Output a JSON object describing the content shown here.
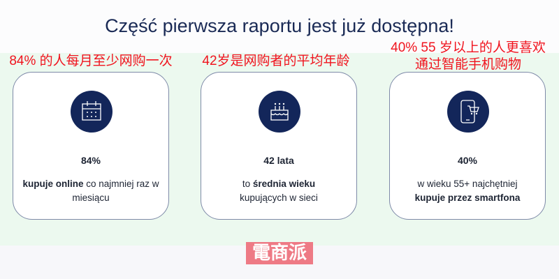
{
  "title": "Część pierwsza raportu jest już dostępna!",
  "annotations": [
    "84% 的人每月至少网购一次",
    "42岁是网购者的平均年龄",
    "40% 55 岁以上的人更喜欢",
    "通过智能手机购物"
  ],
  "cards": [
    {
      "icon": "calendar-icon",
      "value": "84%",
      "desc_bold": "kupuje online",
      "desc_rest": " co najmniej raz w miesiącu"
    },
    {
      "icon": "cake-icon",
      "value": "42 lata",
      "desc_pre": "to ",
      "desc_bold": "średnia wieku",
      "desc_rest": " kupujących w sieci"
    },
    {
      "icon": "smartphone-cart-icon",
      "value": "40%",
      "desc_pre": "w wieku 55+ najchętniej ",
      "desc_bold": "kupuje przez smartfona"
    }
  ],
  "watermark": "電商派",
  "colors": {
    "navy": "#13265a",
    "annotation": "#f0141e",
    "band": "#ecf9ef"
  }
}
